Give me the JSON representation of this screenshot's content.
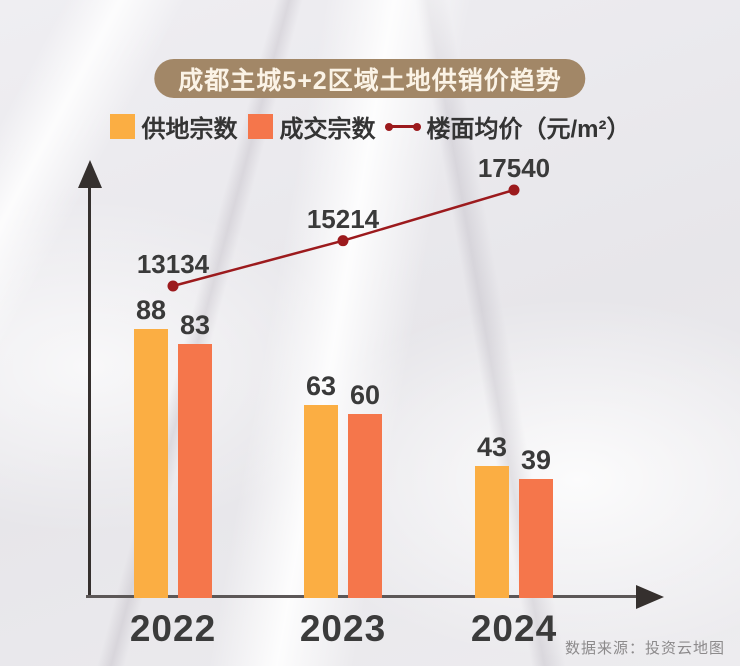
{
  "title": "成都主城5+2区域土地供销价趋势",
  "title_colors": {
    "pill_bg": "#a28767",
    "pill_text": "#fbf3e6"
  },
  "legend": [
    {
      "label": "供地宗数",
      "marker": "square",
      "color": "#fbae43"
    },
    {
      "label": "成交宗数",
      "marker": "square",
      "color": "#f5764b"
    },
    {
      "label": "楼面均价（元/m²）",
      "marker": "line",
      "color": "#9c1a1d"
    }
  ],
  "source": "数据来源：投资云地图",
  "chart_data": {
    "type": "bar",
    "title": "成都主城5+2区域土地供销价趋势",
    "categories": [
      "2022",
      "2023",
      "2024"
    ],
    "series": [
      {
        "name": "供地宗数",
        "type": "bar",
        "color": "#fbae43",
        "values": [
          88,
          63,
          43
        ]
      },
      {
        "name": "成交宗数",
        "type": "bar",
        "color": "#f5764b",
        "values": [
          83,
          60,
          39
        ]
      },
      {
        "name": "楼面均价（元/m²）",
        "type": "line",
        "color": "#9c1a1d",
        "values": [
          13134,
          15214,
          17540
        ]
      }
    ],
    "xlabel": "",
    "ylabel": "",
    "bar_ylim": [
      0,
      140
    ],
    "line_ylim": [
      13134,
      17540
    ],
    "grid": false,
    "legend_position": "top",
    "annotations": "all bar and line values labeled on chart"
  }
}
